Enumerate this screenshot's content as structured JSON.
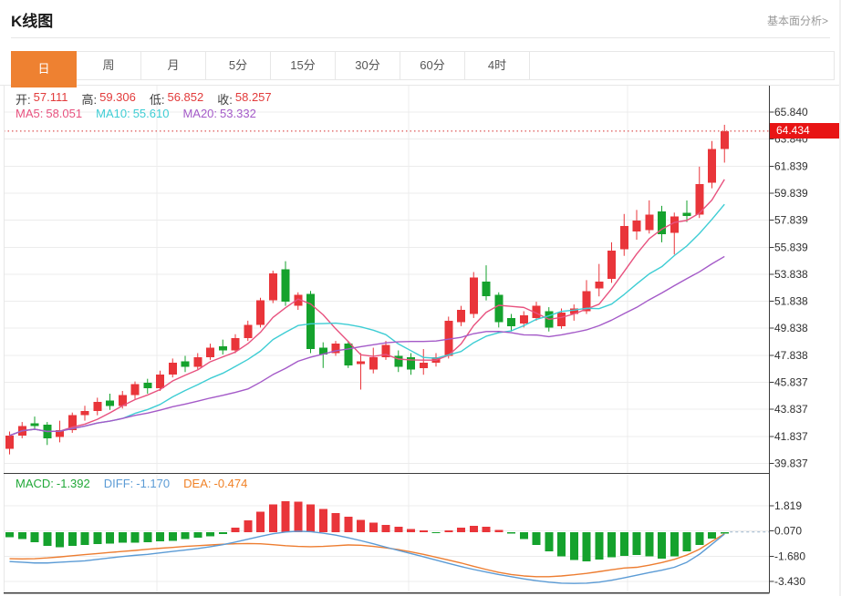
{
  "header": {
    "title": "K线图",
    "link": "基本面分析>"
  },
  "tabs": {
    "items": [
      "日",
      "周",
      "月",
      "5分",
      "15分",
      "30分",
      "60分",
      "4时"
    ],
    "active_index": 0,
    "active_color": "#ee8131"
  },
  "ohlc": {
    "items": [
      {
        "label": "开:",
        "value": "57.111",
        "label_color": "#3c3c3c",
        "value_color": "#e23b3b"
      },
      {
        "label": "高:",
        "value": "59.306",
        "label_color": "#3c3c3c",
        "value_color": "#e23b3b"
      },
      {
        "label": "低:",
        "value": "56.852",
        "label_color": "#3c3c3c",
        "value_color": "#e23b3b"
      },
      {
        "label": "收:",
        "value": "58.257",
        "label_color": "#3c3c3c",
        "value_color": "#e23b3b"
      }
    ]
  },
  "ma_readout": {
    "items": [
      {
        "label": "MA5:",
        "value": "58.051",
        "label_color": "#e8527f",
        "value_color": "#e8527f"
      },
      {
        "label": "MA10:",
        "value": "55.610",
        "label_color": "#3ecdd4",
        "value_color": "#3ecdd4"
      },
      {
        "label": "MA20:",
        "value": "53.332",
        "label_color": "#a45ac8",
        "value_color": "#a45ac8"
      }
    ]
  },
  "macd_readout": {
    "items": [
      {
        "label": "MACD:",
        "value": "-1.392",
        "label_color": "#21a838",
        "value_color": "#21a838"
      },
      {
        "label": "DIFF:",
        "value": "-1.170",
        "label_color": "#5b9bd5",
        "value_color": "#5b9bd5"
      },
      {
        "label": "DEA:",
        "value": "-0.474",
        "label_color": "#f08125",
        "value_color": "#f08125"
      }
    ]
  },
  "price_tag": {
    "value": "64.434",
    "bg": "#e81414",
    "text_color": "#ffffff"
  },
  "chart_data": {
    "type": "candlestick",
    "legend_position": "none",
    "grid": {
      "horizontal": true,
      "vertical_x": [
        172,
        448,
        688
      ]
    },
    "colors": {
      "up": "#e9353a",
      "down": "#15a22d",
      "ma5": "#e8527f",
      "ma10": "#3ecdd4",
      "ma20": "#a45ac8",
      "diff": "#5b9bd5",
      "dea": "#ed7d31",
      "grid": "#ececec",
      "axis": "#3c3c3c",
      "latest_line": "#e06666",
      "zero_dash": "#9ab4cc",
      "label": "#2f2f2f"
    },
    "panels": [
      {
        "name": "price",
        "y_axis_labels": [
          "65.840",
          "63.840",
          "61.839",
          "59.839",
          "57.839",
          "55.839",
          "53.838",
          "51.838",
          "49.838",
          "47.838",
          "45.837",
          "43.837",
          "41.837",
          "39.837"
        ],
        "latest_price": 64.434,
        "ma_periods": [
          5,
          10,
          20
        ],
        "candles_ohlc": [
          [
            40.9,
            42.2,
            40.5,
            41.9
          ],
          [
            41.9,
            42.9,
            41.7,
            42.6
          ],
          [
            42.8,
            43.3,
            42.3,
            42.6
          ],
          [
            42.7,
            42.9,
            41.2,
            41.7
          ],
          [
            41.8,
            43.0,
            41.4,
            42.3
          ],
          [
            42.3,
            43.6,
            42.1,
            43.4
          ],
          [
            43.4,
            44.1,
            43.0,
            43.7
          ],
          [
            43.7,
            44.7,
            43.4,
            44.4
          ],
          [
            44.5,
            45.0,
            43.8,
            44.1
          ],
          [
            44.1,
            45.2,
            43.9,
            44.9
          ],
          [
            44.9,
            45.9,
            44.6,
            45.7
          ],
          [
            45.8,
            46.1,
            45.0,
            45.4
          ],
          [
            45.4,
            46.7,
            45.2,
            46.4
          ],
          [
            46.4,
            47.6,
            46.2,
            47.3
          ],
          [
            47.4,
            47.8,
            46.6,
            47.0
          ],
          [
            47.0,
            48.0,
            46.8,
            47.7
          ],
          [
            47.7,
            48.7,
            47.5,
            48.4
          ],
          [
            48.5,
            49.0,
            47.9,
            48.2
          ],
          [
            48.2,
            49.4,
            48.0,
            49.1
          ],
          [
            49.1,
            50.4,
            48.9,
            50.1
          ],
          [
            50.1,
            52.1,
            49.9,
            51.9
          ],
          [
            51.9,
            54.1,
            51.7,
            53.9
          ],
          [
            54.2,
            54.8,
            51.5,
            51.8
          ],
          [
            51.5,
            52.5,
            51.2,
            52.3
          ],
          [
            52.4,
            52.6,
            48.0,
            48.3
          ],
          [
            48.4,
            48.8,
            46.9,
            47.9
          ],
          [
            48.0,
            48.9,
            47.8,
            48.7
          ],
          [
            48.7,
            48.9,
            46.9,
            47.1
          ],
          [
            47.2,
            48.0,
            45.3,
            47.4
          ],
          [
            46.8,
            48.4,
            46.5,
            47.7
          ],
          [
            47.7,
            48.9,
            47.5,
            48.6
          ],
          [
            47.8,
            48.2,
            46.6,
            47.0
          ],
          [
            47.7,
            48.0,
            46.4,
            46.8
          ],
          [
            46.9,
            48.3,
            46.4,
            47.3
          ],
          [
            47.3,
            48.0,
            47.0,
            47.7
          ],
          [
            47.8,
            50.7,
            47.6,
            50.4
          ],
          [
            50.3,
            51.5,
            50.0,
            51.2
          ],
          [
            50.9,
            54.0,
            50.6,
            53.6
          ],
          [
            53.3,
            54.5,
            51.9,
            52.2
          ],
          [
            52.3,
            52.5,
            49.9,
            50.3
          ],
          [
            50.6,
            50.9,
            49.6,
            50.0
          ],
          [
            50.2,
            51.1,
            49.9,
            50.8
          ],
          [
            50.6,
            51.8,
            50.4,
            51.5
          ],
          [
            51.1,
            51.4,
            49.6,
            49.9
          ],
          [
            50.0,
            51.3,
            49.8,
            51.0
          ],
          [
            50.9,
            51.6,
            50.4,
            51.3
          ],
          [
            51.1,
            53.4,
            50.9,
            52.6
          ],
          [
            52.8,
            54.6,
            52.2,
            53.3
          ],
          [
            53.5,
            56.2,
            53.2,
            55.6
          ],
          [
            55.7,
            58.3,
            55.2,
            57.4
          ],
          [
            57.0,
            58.6,
            56.4,
            57.8
          ],
          [
            57.111,
            59.306,
            56.852,
            58.257
          ],
          [
            58.5,
            58.9,
            56.2,
            56.8
          ],
          [
            56.9,
            58.4,
            55.3,
            58.1
          ],
          [
            58.4,
            59.3,
            57.7,
            58.15
          ],
          [
            58.25,
            61.8,
            58.0,
            60.5
          ],
          [
            60.6,
            63.7,
            60.2,
            63.1
          ],
          [
            63.1,
            64.9,
            62.1,
            64.434
          ]
        ]
      },
      {
        "name": "macd",
        "y_axis_labels": [
          "1.819",
          "0.070",
          "-1.680",
          "-3.430"
        ],
        "histogram": [
          -0.35,
          -0.5,
          -0.7,
          -0.95,
          -1.05,
          -0.95,
          -0.9,
          -0.85,
          -0.8,
          -0.75,
          -0.75,
          -0.7,
          -0.65,
          -0.6,
          -0.5,
          -0.4,
          -0.3,
          -0.15,
          0.3,
          0.8,
          1.4,
          1.9,
          2.15,
          2.1,
          1.9,
          1.6,
          1.3,
          1.05,
          0.85,
          0.65,
          0.5,
          0.35,
          0.2,
          0.1,
          -0.08,
          0.12,
          0.3,
          0.42,
          0.38,
          0.15,
          -0.12,
          -0.5,
          -0.9,
          -1.35,
          -1.7,
          -1.95,
          -2.05,
          -1.9,
          -1.75,
          -1.65,
          -1.6,
          -1.7,
          -1.85,
          -1.7,
          -1.35,
          -0.9,
          -0.45,
          -0.1
        ],
        "diff": [
          -2.05,
          -2.1,
          -2.15,
          -2.15,
          -2.1,
          -2.05,
          -2.0,
          -1.9,
          -1.8,
          -1.7,
          -1.62,
          -1.55,
          -1.45,
          -1.35,
          -1.25,
          -1.15,
          -1.02,
          -0.88,
          -0.7,
          -0.5,
          -0.3,
          -0.12,
          0.0,
          0.05,
          0.02,
          -0.08,
          -0.22,
          -0.4,
          -0.6,
          -0.82,
          -1.05,
          -1.28,
          -1.5,
          -1.72,
          -1.95,
          -2.18,
          -2.4,
          -2.6,
          -2.78,
          -2.95,
          -3.1,
          -3.25,
          -3.38,
          -3.48,
          -3.55,
          -3.57,
          -3.55,
          -3.48,
          -3.35,
          -3.18,
          -3.0,
          -2.82,
          -2.65,
          -2.45,
          -2.1,
          -1.55,
          -0.85,
          -0.15
        ],
        "dea": [
          -1.85,
          -1.87,
          -1.85,
          -1.8,
          -1.73,
          -1.65,
          -1.57,
          -1.5,
          -1.42,
          -1.35,
          -1.28,
          -1.2,
          -1.13,
          -1.07,
          -1.0,
          -0.95,
          -0.9,
          -0.85,
          -0.82,
          -0.8,
          -0.82,
          -0.88,
          -0.95,
          -1.0,
          -1.02,
          -1.0,
          -0.95,
          -0.9,
          -0.92,
          -1.0,
          -1.1,
          -1.22,
          -1.38,
          -1.55,
          -1.75,
          -1.95,
          -2.15,
          -2.38,
          -2.6,
          -2.8,
          -2.95,
          -3.05,
          -3.1,
          -3.1,
          -3.05,
          -2.97,
          -2.87,
          -2.75,
          -2.62,
          -2.5,
          -2.45,
          -2.3,
          -2.12,
          -1.9,
          -1.6,
          -1.2,
          -0.65,
          -0.12
        ]
      }
    ]
  }
}
